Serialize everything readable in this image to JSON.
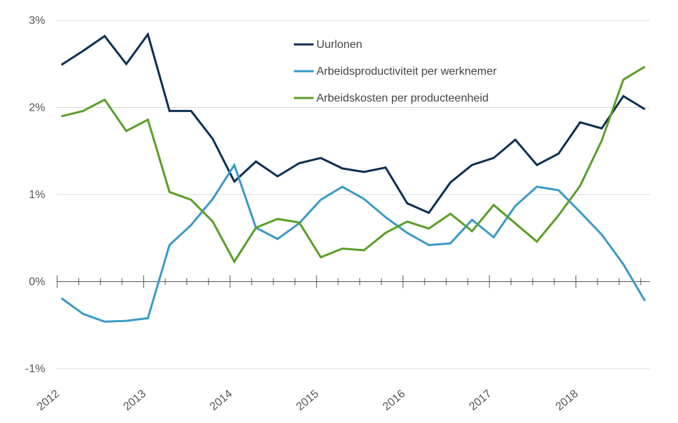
{
  "chart_data": {
    "type": "line",
    "title": "",
    "xlabel": "",
    "ylabel": "",
    "ylim": [
      -1,
      3
    ],
    "y_ticks": [
      {
        "value": 3,
        "label": "3%"
      },
      {
        "value": 2,
        "label": "2%"
      },
      {
        "value": 1,
        "label": "1%"
      },
      {
        "value": 0,
        "label": "0%"
      },
      {
        "value": -1,
        "label": "-1%"
      }
    ],
    "x_ticks": [
      "2012",
      "2013",
      "2014",
      "2015",
      "2016",
      "2017",
      "2018"
    ],
    "x": [
      "2012Q1",
      "2012Q2",
      "2012Q3",
      "2012Q4",
      "2013Q1",
      "2013Q2",
      "2013Q3",
      "2013Q4",
      "2014Q1",
      "2014Q2",
      "2014Q3",
      "2014Q4",
      "2015Q1",
      "2015Q2",
      "2015Q3",
      "2015Q4",
      "2016Q1",
      "2016Q2",
      "2016Q3",
      "2016Q4",
      "2017Q1",
      "2017Q2",
      "2017Q3",
      "2017Q4",
      "2018Q1",
      "2018Q2",
      "2018Q3",
      "2018Q4"
    ],
    "grid": "horizontal",
    "legend_position": "top-center",
    "series": [
      {
        "name": "Uurlonen",
        "color": "#0d2f55",
        "values": [
          2.49,
          2.65,
          2.82,
          2.5,
          2.84,
          1.96,
          1.96,
          1.64,
          1.15,
          1.38,
          1.21,
          1.36,
          1.42,
          1.3,
          1.26,
          1.31,
          0.9,
          0.79,
          1.14,
          1.34,
          1.42,
          1.63,
          1.34,
          1.47,
          1.83,
          1.76,
          2.13,
          1.98
        ]
      },
      {
        "name": "Arbeidsproductiviteit per werknemer",
        "color": "#3a9ac6",
        "values": [
          -0.19,
          -0.37,
          -0.46,
          -0.45,
          -0.42,
          0.42,
          0.65,
          0.95,
          1.34,
          0.62,
          0.49,
          0.67,
          0.94,
          1.09,
          0.95,
          0.74,
          0.56,
          0.42,
          0.44,
          0.71,
          0.51,
          0.87,
          1.09,
          1.05,
          0.8,
          0.54,
          0.2,
          -0.22
        ]
      },
      {
        "name": "Arbeidskosten per producteenheid",
        "color": "#5a9e27",
        "values": [
          1.9,
          1.96,
          2.09,
          1.73,
          1.86,
          1.03,
          0.94,
          0.69,
          0.23,
          0.62,
          0.72,
          0.68,
          0.28,
          0.38,
          0.36,
          0.56,
          0.69,
          0.61,
          0.78,
          0.58,
          0.88,
          0.67,
          0.46,
          0.76,
          1.1,
          1.62,
          2.32,
          2.47
        ]
      }
    ]
  }
}
